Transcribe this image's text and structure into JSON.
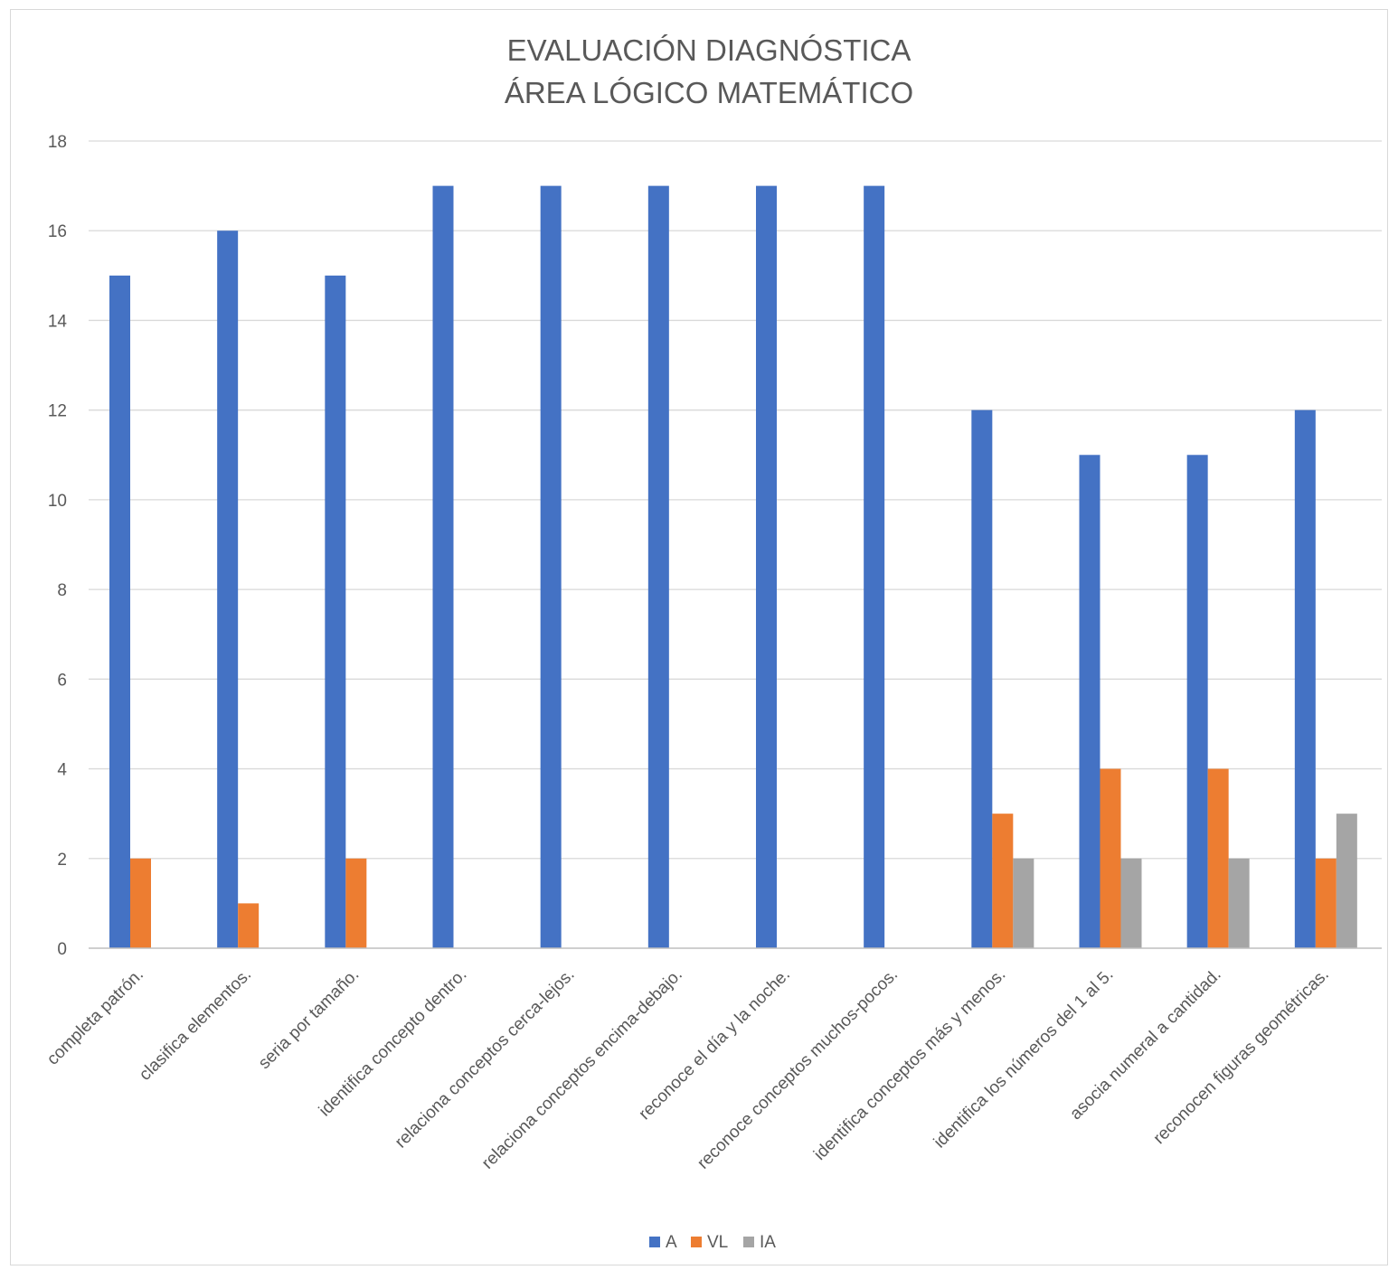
{
  "chart_data": {
    "type": "bar",
    "title": [
      "EVALUACIÓN DIAGNÓSTICA",
      "ÁREA LÓGICO MATEMÁTICO"
    ],
    "categories": [
      "completa patrón.",
      "clasifica elementos.",
      "seria por tamaño.",
      "identifica concepto dentro.",
      "relaciona conceptos cerca-lejos.",
      "relaciona conceptos encima-debajo.",
      "reconoce el día y la noche.",
      "reconoce conceptos muchos-pocos.",
      "identifica conceptos más y menos.",
      "identifica los números del 1 al 5.",
      "asocia numeral a cantidad.",
      "reconocen figuras geométricas."
    ],
    "series": [
      {
        "name": "A",
        "color": "#4472C4",
        "values": [
          15,
          16,
          15,
          17,
          17,
          17,
          17,
          17,
          12,
          11,
          11,
          12
        ]
      },
      {
        "name": "VL",
        "color": "#ED7D31",
        "values": [
          2,
          1,
          2,
          0,
          0,
          0,
          0,
          0,
          3,
          4,
          4,
          2
        ]
      },
      {
        "name": "IA",
        "color": "#A5A5A5",
        "values": [
          0,
          0,
          0,
          0,
          0,
          0,
          0,
          0,
          2,
          2,
          2,
          3
        ]
      }
    ],
    "ylim": [
      0,
      18
    ],
    "yticks": [
      0,
      2,
      4,
      6,
      8,
      10,
      12,
      14,
      16,
      18
    ],
    "grid": true,
    "legend": "bottom"
  }
}
